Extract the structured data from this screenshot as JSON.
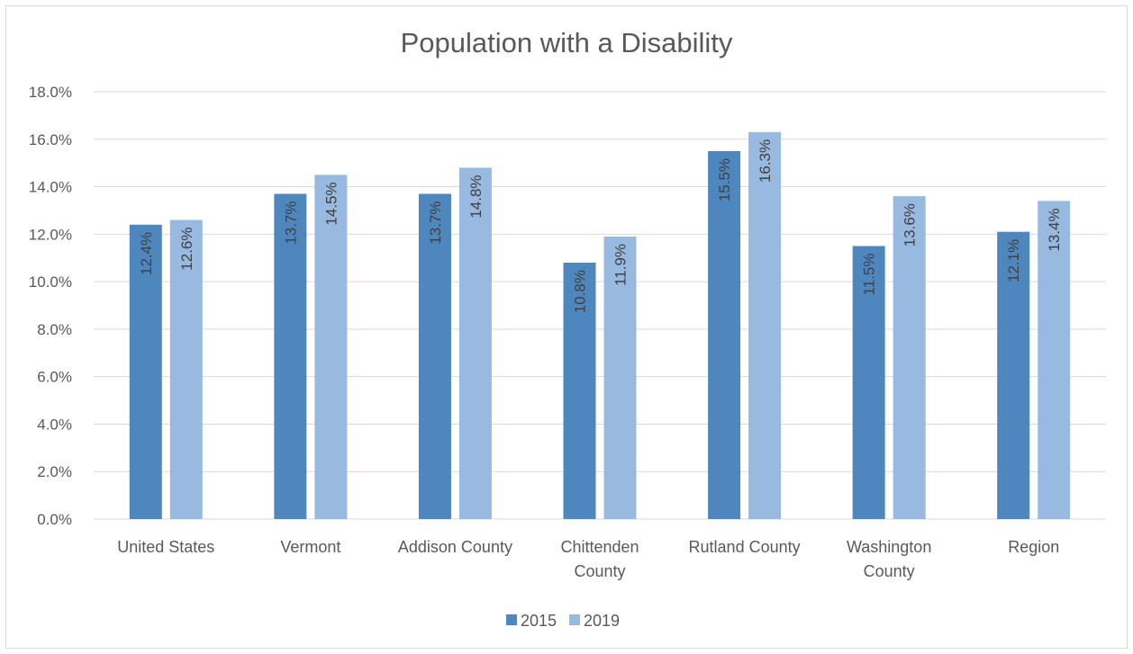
{
  "chart_data": {
    "type": "bar",
    "title": "Population with a Disability",
    "categories": [
      [
        "United States"
      ],
      [
        "Vermont"
      ],
      [
        "Addison County"
      ],
      [
        "Chittenden",
        "County"
      ],
      [
        "Rutland County"
      ],
      [
        "Washington",
        "County"
      ],
      [
        "Region"
      ]
    ],
    "series": [
      {
        "name": "2015",
        "color": "#4e87bd",
        "values": [
          12.4,
          13.7,
          13.7,
          10.8,
          15.5,
          11.5,
          12.1
        ],
        "labels": [
          "12.4%",
          "13.7%",
          "13.7%",
          "10.8%",
          "15.5%",
          "11.5%",
          "12.1%"
        ]
      },
      {
        "name": "2019",
        "color": "#98b9e0",
        "values": [
          12.6,
          14.5,
          14.8,
          11.9,
          16.3,
          13.6,
          13.4
        ],
        "labels": [
          "12.6%",
          "14.5%",
          "14.8%",
          "11.9%",
          "16.3%",
          "13.6%",
          "13.4%"
        ]
      }
    ],
    "yticks": [
      "0.0%",
      "2.0%",
      "4.0%",
      "6.0%",
      "8.0%",
      "10.0%",
      "12.0%",
      "14.0%",
      "16.0%",
      "18.0%"
    ],
    "ylim": [
      0,
      18
    ],
    "ytick_step": 2,
    "grid": true,
    "legend": "bottom",
    "gridline_color": "#d9d9d9"
  }
}
